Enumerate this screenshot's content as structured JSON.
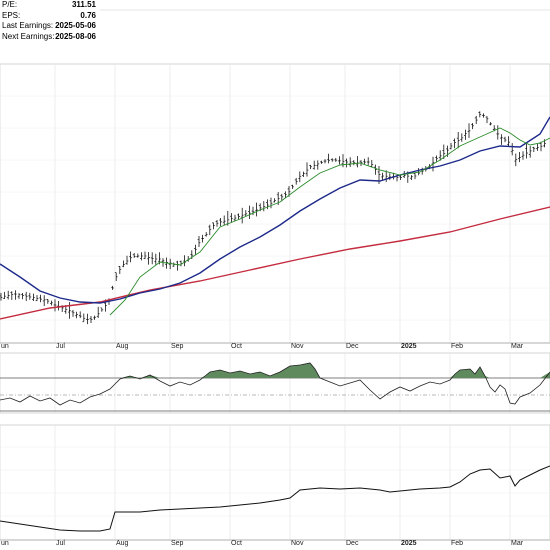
{
  "stats": [
    {
      "label": "P/E:",
      "value": "311.51"
    },
    {
      "label": "EPS:",
      "value": "0.76"
    },
    {
      "label": "Last Earnings:",
      "value": "2025-05-06"
    },
    {
      "label": "Next Earnings:",
      "value": "2025-08-06"
    }
  ],
  "chart_data": [
    {
      "type": "line",
      "panel": "price",
      "x_tick_labels": [
        "un",
        "Jul",
        "Aug",
        "Sep",
        "Oct",
        "Nov",
        "Dec",
        "2025",
        "Feb",
        "Mar"
      ],
      "x_tick_day_index": [
        0,
        55,
        115,
        170,
        230,
        290,
        345,
        400,
        450,
        510
      ],
      "grid": true,
      "price_path": [
        [
          0,
          298
        ],
        [
          5,
          296
        ],
        [
          10,
          295
        ],
        [
          15,
          294
        ],
        [
          20,
          295
        ],
        [
          25,
          296
        ],
        [
          30,
          297
        ],
        [
          35,
          298
        ],
        [
          40,
          299
        ],
        [
          45,
          300
        ],
        [
          50,
          302
        ],
        [
          55,
          305
        ],
        [
          60,
          307
        ],
        [
          65,
          309
        ],
        [
          70,
          311
        ],
        [
          75,
          314
        ],
        [
          80,
          316
        ],
        [
          85,
          319
        ],
        [
          90,
          320
        ],
        [
          95,
          317
        ],
        [
          100,
          312
        ],
        [
          105,
          306
        ],
        [
          110,
          300
        ],
        [
          112,
          290
        ],
        [
          115,
          280
        ],
        [
          118,
          272
        ],
        [
          122,
          266
        ],
        [
          126,
          262
        ],
        [
          130,
          258
        ],
        [
          135,
          256
        ],
        [
          140,
          256
        ],
        [
          145,
          256
        ],
        [
          150,
          258
        ],
        [
          155,
          259
        ],
        [
          160,
          259
        ],
        [
          165,
          262
        ],
        [
          170,
          263
        ],
        [
          175,
          265
        ],
        [
          180,
          264
        ],
        [
          185,
          262
        ],
        [
          190,
          258
        ],
        [
          195,
          250
        ],
        [
          200,
          241
        ],
        [
          205,
          236
        ],
        [
          210,
          229
        ],
        [
          215,
          224
        ],
        [
          220,
          222
        ],
        [
          225,
          221
        ],
        [
          230,
          219
        ],
        [
          235,
          218
        ],
        [
          240,
          216
        ],
        [
          245,
          214
        ],
        [
          250,
          213
        ],
        [
          255,
          211
        ],
        [
          260,
          208
        ],
        [
          265,
          206
        ],
        [
          270,
          204
        ],
        [
          275,
          200
        ],
        [
          280,
          198
        ],
        [
          285,
          195
        ],
        [
          290,
          191
        ],
        [
          295,
          183
        ],
        [
          300,
          176
        ],
        [
          305,
          172
        ],
        [
          310,
          167
        ],
        [
          315,
          165
        ],
        [
          320,
          163
        ],
        [
          325,
          161
        ],
        [
          330,
          160
        ],
        [
          335,
          160
        ],
        [
          340,
          161
        ],
        [
          345,
          162
        ],
        [
          350,
          162
        ],
        [
          355,
          163
        ],
        [
          360,
          163
        ],
        [
          365,
          162
        ],
        [
          370,
          162
        ],
        [
          375,
          169
        ],
        [
          380,
          176
        ],
        [
          385,
          176
        ],
        [
          390,
          177
        ],
        [
          395,
          177
        ],
        [
          400,
          178
        ],
        [
          405,
          175
        ],
        [
          410,
          177
        ],
        [
          415,
          176
        ],
        [
          420,
          172
        ],
        [
          425,
          170
        ],
        [
          430,
          166
        ],
        [
          435,
          160
        ],
        [
          440,
          156
        ],
        [
          445,
          153
        ],
        [
          450,
          147
        ],
        [
          455,
          142
        ],
        [
          460,
          140
        ],
        [
          465,
          134
        ],
        [
          470,
          130
        ],
        [
          475,
          122
        ],
        [
          480,
          114
        ],
        [
          485,
          116
        ],
        [
          490,
          123
        ],
        [
          495,
          130
        ],
        [
          500,
          137
        ],
        [
          505,
          140
        ],
        [
          510,
          143
        ],
        [
          515,
          160
        ],
        [
          520,
          157
        ],
        [
          525,
          154
        ],
        [
          530,
          151
        ],
        [
          535,
          148
        ],
        [
          540,
          147
        ],
        [
          545,
          143
        ],
        [
          550,
          130
        ]
      ],
      "ma20_path": [
        [
          110,
          315
        ],
        [
          125,
          300
        ],
        [
          140,
          277
        ],
        [
          160,
          262
        ],
        [
          180,
          265
        ],
        [
          200,
          252
        ],
        [
          220,
          227
        ],
        [
          240,
          219
        ],
        [
          260,
          210
        ],
        [
          280,
          202
        ],
        [
          300,
          187
        ],
        [
          320,
          173
        ],
        [
          340,
          165
        ],
        [
          360,
          163
        ],
        [
          380,
          170
        ],
        [
          400,
          175
        ],
        [
          420,
          172
        ],
        [
          440,
          160
        ],
        [
          460,
          146
        ],
        [
          480,
          137
        ],
        [
          500,
          128
        ],
        [
          510,
          133
        ],
        [
          520,
          140
        ],
        [
          530,
          145
        ],
        [
          540,
          143
        ],
        [
          550,
          138
        ]
      ],
      "ma50_path": [
        [
          0,
          264
        ],
        [
          20,
          277
        ],
        [
          40,
          291
        ],
        [
          60,
          298
        ],
        [
          80,
          302
        ],
        [
          100,
          303
        ],
        [
          120,
          299
        ],
        [
          140,
          293
        ],
        [
          160,
          289
        ],
        [
          180,
          283
        ],
        [
          200,
          273
        ],
        [
          220,
          259
        ],
        [
          240,
          247
        ],
        [
          260,
          237
        ],
        [
          280,
          225
        ],
        [
          300,
          211
        ],
        [
          320,
          199
        ],
        [
          340,
          188
        ],
        [
          360,
          180
        ],
        [
          380,
          181
        ],
        [
          400,
          175
        ],
        [
          420,
          170
        ],
        [
          440,
          166
        ],
        [
          460,
          160
        ],
        [
          480,
          151
        ],
        [
          500,
          146
        ],
        [
          520,
          147
        ],
        [
          540,
          134
        ],
        [
          550,
          117
        ]
      ],
      "ma200_path": [
        [
          0,
          319
        ],
        [
          50,
          308
        ],
        [
          100,
          302
        ],
        [
          150,
          290
        ],
        [
          200,
          281
        ],
        [
          250,
          270
        ],
        [
          300,
          259
        ],
        [
          350,
          249
        ],
        [
          400,
          241
        ],
        [
          450,
          232
        ],
        [
          500,
          219
        ],
        [
          550,
          207
        ]
      ],
      "series": []
    },
    {
      "type": "line",
      "panel": "oscillator",
      "grid": true,
      "reference_levels": [
        "upper",
        "middle",
        "lower"
      ],
      "path": [
        [
          0,
          400
        ],
        [
          10,
          398
        ],
        [
          20,
          402
        ],
        [
          30,
          396
        ],
        [
          40,
          401
        ],
        [
          50,
          398
        ],
        [
          60,
          405
        ],
        [
          70,
          400
        ],
        [
          80,
          403
        ],
        [
          90,
          397
        ],
        [
          100,
          394
        ],
        [
          110,
          389
        ],
        [
          115,
          384
        ],
        [
          120,
          379
        ],
        [
          130,
          376
        ],
        [
          140,
          379
        ],
        [
          150,
          375
        ],
        [
          160,
          381
        ],
        [
          170,
          386
        ],
        [
          180,
          382
        ],
        [
          190,
          385
        ],
        [
          200,
          380
        ],
        [
          205,
          376
        ],
        [
          210,
          372
        ],
        [
          220,
          370
        ],
        [
          230,
          373
        ],
        [
          240,
          371
        ],
        [
          250,
          374
        ],
        [
          260,
          372
        ],
        [
          270,
          376
        ],
        [
          280,
          372
        ],
        [
          290,
          366
        ],
        [
          300,
          365
        ],
        [
          310,
          363
        ],
        [
          315,
          369
        ],
        [
          320,
          378
        ],
        [
          330,
          382
        ],
        [
          340,
          386
        ],
        [
          350,
          383
        ],
        [
          360,
          380
        ],
        [
          370,
          390
        ],
        [
          380,
          399
        ],
        [
          390,
          392
        ],
        [
          400,
          387
        ],
        [
          410,
          391
        ],
        [
          420,
          386
        ],
        [
          430,
          382
        ],
        [
          440,
          384
        ],
        [
          450,
          380
        ],
        [
          455,
          374
        ],
        [
          460,
          370
        ],
        [
          470,
          369
        ],
        [
          475,
          374
        ],
        [
          480,
          367
        ],
        [
          485,
          376
        ],
        [
          490,
          387
        ],
        [
          495,
          392
        ],
        [
          500,
          385
        ],
        [
          505,
          389
        ],
        [
          510,
          403
        ],
        [
          515,
          404
        ],
        [
          520,
          397
        ],
        [
          530,
          393
        ],
        [
          540,
          385
        ],
        [
          550,
          372
        ]
      ]
    },
    {
      "type": "line",
      "panel": "volume",
      "grid": true,
      "path": [
        [
          0,
          521
        ],
        [
          20,
          524
        ],
        [
          40,
          527
        ],
        [
          60,
          530
        ],
        [
          80,
          531
        ],
        [
          100,
          531
        ],
        [
          110,
          529
        ],
        [
          115,
          512
        ],
        [
          140,
          512
        ],
        [
          160,
          510
        ],
        [
          180,
          509
        ],
        [
          200,
          508
        ],
        [
          220,
          507
        ],
        [
          240,
          505
        ],
        [
          260,
          503
        ],
        [
          280,
          500
        ],
        [
          290,
          498
        ],
        [
          300,
          490
        ],
        [
          320,
          488
        ],
        [
          340,
          489
        ],
        [
          360,
          488
        ],
        [
          380,
          490
        ],
        [
          390,
          492
        ],
        [
          400,
          491
        ],
        [
          420,
          489
        ],
        [
          440,
          488
        ],
        [
          450,
          487
        ],
        [
          460,
          482
        ],
        [
          470,
          474
        ],
        [
          480,
          470
        ],
        [
          490,
          469
        ],
        [
          500,
          478
        ],
        [
          510,
          476
        ],
        [
          515,
          486
        ],
        [
          520,
          480
        ],
        [
          530,
          475
        ],
        [
          540,
          470
        ],
        [
          550,
          466
        ]
      ]
    }
  ]
}
